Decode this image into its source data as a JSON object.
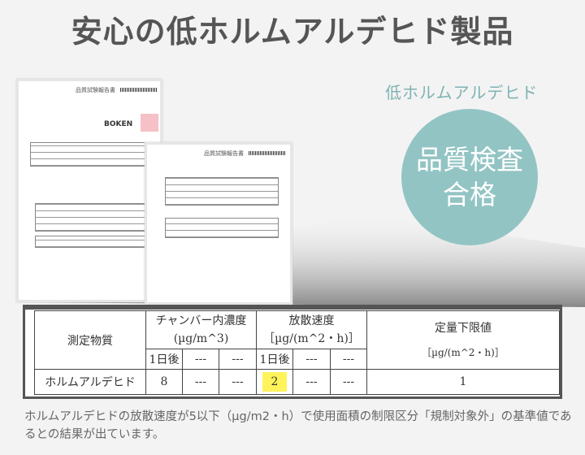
{
  "title": "安心の低ホルムアルデヒド製品",
  "subtitle": "低ホルムアルデヒド",
  "badge": {
    "line1": "品質検査",
    "line2": "合格",
    "color": "#93c4c4"
  },
  "documents": {
    "report_title": "品質試験報告書",
    "issuer_logo": "BOKEN"
  },
  "table": {
    "substance_header": "測定物質",
    "chamber_header": "チャンバー内濃度",
    "chamber_unit": "(µg/m^3)",
    "emission_header": "放散速度",
    "emission_unit": "［µg/(m^2・h)］",
    "limit_header": "定量下限値",
    "limit_unit": "［µg/(m^2・h)］",
    "sub_headers": [
      "1日後",
      "---",
      "---",
      "1日後",
      "---",
      "---"
    ],
    "row": {
      "substance": "ホルムアルデヒド",
      "values": [
        "8",
        "---",
        "---",
        "2",
        "---",
        "---"
      ],
      "limit": "1"
    },
    "highlight_color": "#fff35a"
  },
  "note": "ホルムアルデヒドの放散速度が5以下（µg/m2・h）で使用面積の制限区分「規制対象外」の基準値であるとの結果が出ています。"
}
